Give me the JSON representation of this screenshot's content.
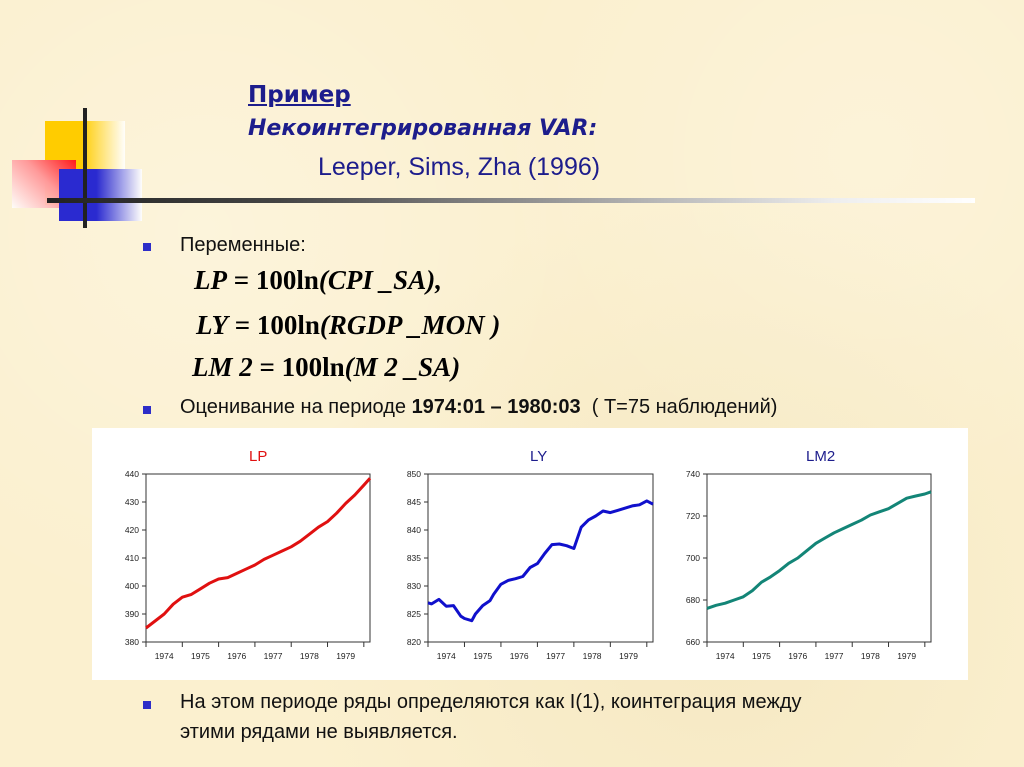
{
  "header": {
    "title": "Пример",
    "subtitle": "Некоинтегрированная VAR:",
    "reference": "Leeper, Sims, Zha (1996)"
  },
  "bullets": [
    {
      "text": "Переменные:"
    },
    {
      "text_prefix": "Оценивание на периоде ",
      "text_bold": "1974:01 – 1980:03",
      "text_suffix": "  ( T=75 наблюдений)"
    },
    {
      "line1": "На этом периоде ряды определяются как I(1), коинтеграция между",
      "line2": "этими рядами не выявляется."
    }
  ],
  "formulas": [
    {
      "lhs": "LP",
      "eq": " = ",
      "num": "100",
      "fn": "ln",
      "arg": "(CPI _SA),"
    },
    {
      "lhs": "LY",
      "eq": " = ",
      "num": "100",
      "fn": "ln",
      "arg": "(RGDP _MON )"
    },
    {
      "lhs": "LM 2",
      "eq": " = ",
      "num": "100",
      "fn": "ln",
      "arg": "(M 2 _SA)"
    }
  ],
  "colors": {
    "LP": "#e01010",
    "LY": "#1010cc",
    "LM2": "#138577",
    "title": "#1d1d8c",
    "bullet": "#2d2dc8"
  },
  "chart_data": [
    {
      "type": "line",
      "title": "LP",
      "xlabel": "",
      "ylabel": "",
      "x_ticks": [
        "1974",
        "1975",
        "1976",
        "1977",
        "1978",
        "1979"
      ],
      "y_ticks": [
        380,
        390,
        400,
        410,
        420,
        430,
        440
      ],
      "ylim": [
        380,
        440
      ],
      "x_range": [
        "1974:01",
        "1980:03"
      ],
      "x": [
        1974.0,
        1974.25,
        1974.5,
        1974.75,
        1975.0,
        1975.25,
        1975.5,
        1975.75,
        1976.0,
        1976.25,
        1976.5,
        1976.75,
        1977.0,
        1977.25,
        1977.5,
        1977.75,
        1978.0,
        1978.25,
        1978.5,
        1978.75,
        1979.0,
        1979.25,
        1979.5,
        1979.75,
        1980.0,
        1980.17
      ],
      "values": [
        385,
        387.5,
        390,
        393.5,
        396,
        397,
        399,
        401,
        402.5,
        403,
        404.5,
        406,
        407.5,
        409.5,
        411,
        412.5,
        414,
        416,
        418.5,
        421,
        423,
        426,
        429.5,
        432.5,
        436,
        438.5
      ],
      "grid": false
    },
    {
      "type": "line",
      "title": "LY",
      "xlabel": "",
      "ylabel": "",
      "x_ticks": [
        "1974",
        "1975",
        "1976",
        "1977",
        "1978",
        "1979"
      ],
      "y_ticks": [
        820,
        825,
        830,
        835,
        840,
        845,
        850
      ],
      "ylim": [
        820,
        850
      ],
      "x_range": [
        "1974:01",
        "1980:03"
      ],
      "x": [
        1974.0,
        1974.1,
        1974.3,
        1974.5,
        1974.7,
        1974.9,
        1975.0,
        1975.2,
        1975.3,
        1975.5,
        1975.7,
        1975.8,
        1976.0,
        1976.2,
        1976.4,
        1976.6,
        1976.8,
        1977.0,
        1977.2,
        1977.4,
        1977.6,
        1977.8,
        1978.0,
        1978.2,
        1978.4,
        1978.6,
        1978.8,
        1979.0,
        1979.2,
        1979.4,
        1979.6,
        1979.8,
        1980.0,
        1980.17
      ],
      "values": [
        827,
        826.8,
        827.6,
        826.4,
        826.5,
        824.6,
        824.2,
        823.8,
        825,
        826.5,
        827.4,
        828.5,
        830.3,
        831,
        831.3,
        831.7,
        833.3,
        834,
        835.8,
        837.4,
        837.5,
        837.2,
        836.7,
        840.5,
        841.8,
        842.5,
        843.4,
        843.1,
        843.5,
        843.9,
        844.3,
        844.5,
        845.2,
        844.6
      ],
      "grid": false
    },
    {
      "type": "line",
      "title": "LM2",
      "xlabel": "",
      "ylabel": "",
      "x_ticks": [
        "1974",
        "1975",
        "1976",
        "1977",
        "1978",
        "1979"
      ],
      "y_ticks": [
        660,
        680,
        700,
        720,
        740
      ],
      "ylim": [
        660,
        740
      ],
      "x_range": [
        "1974:01",
        "1980:03"
      ],
      "x": [
        1974.0,
        1974.25,
        1974.5,
        1974.75,
        1975.0,
        1975.25,
        1975.5,
        1975.75,
        1976.0,
        1976.25,
        1976.5,
        1976.75,
        1977.0,
        1977.25,
        1977.5,
        1977.75,
        1978.0,
        1978.25,
        1978.5,
        1978.75,
        1979.0,
        1979.25,
        1979.5,
        1979.75,
        1980.0,
        1980.17
      ],
      "values": [
        676,
        677.5,
        678.5,
        680,
        681.5,
        684.5,
        688.5,
        691,
        694,
        697.5,
        700,
        703.5,
        707,
        709.5,
        712,
        714,
        716,
        718,
        720.5,
        722,
        723.5,
        726,
        728.5,
        729.5,
        730.5,
        731.5
      ],
      "grid": false
    }
  ]
}
